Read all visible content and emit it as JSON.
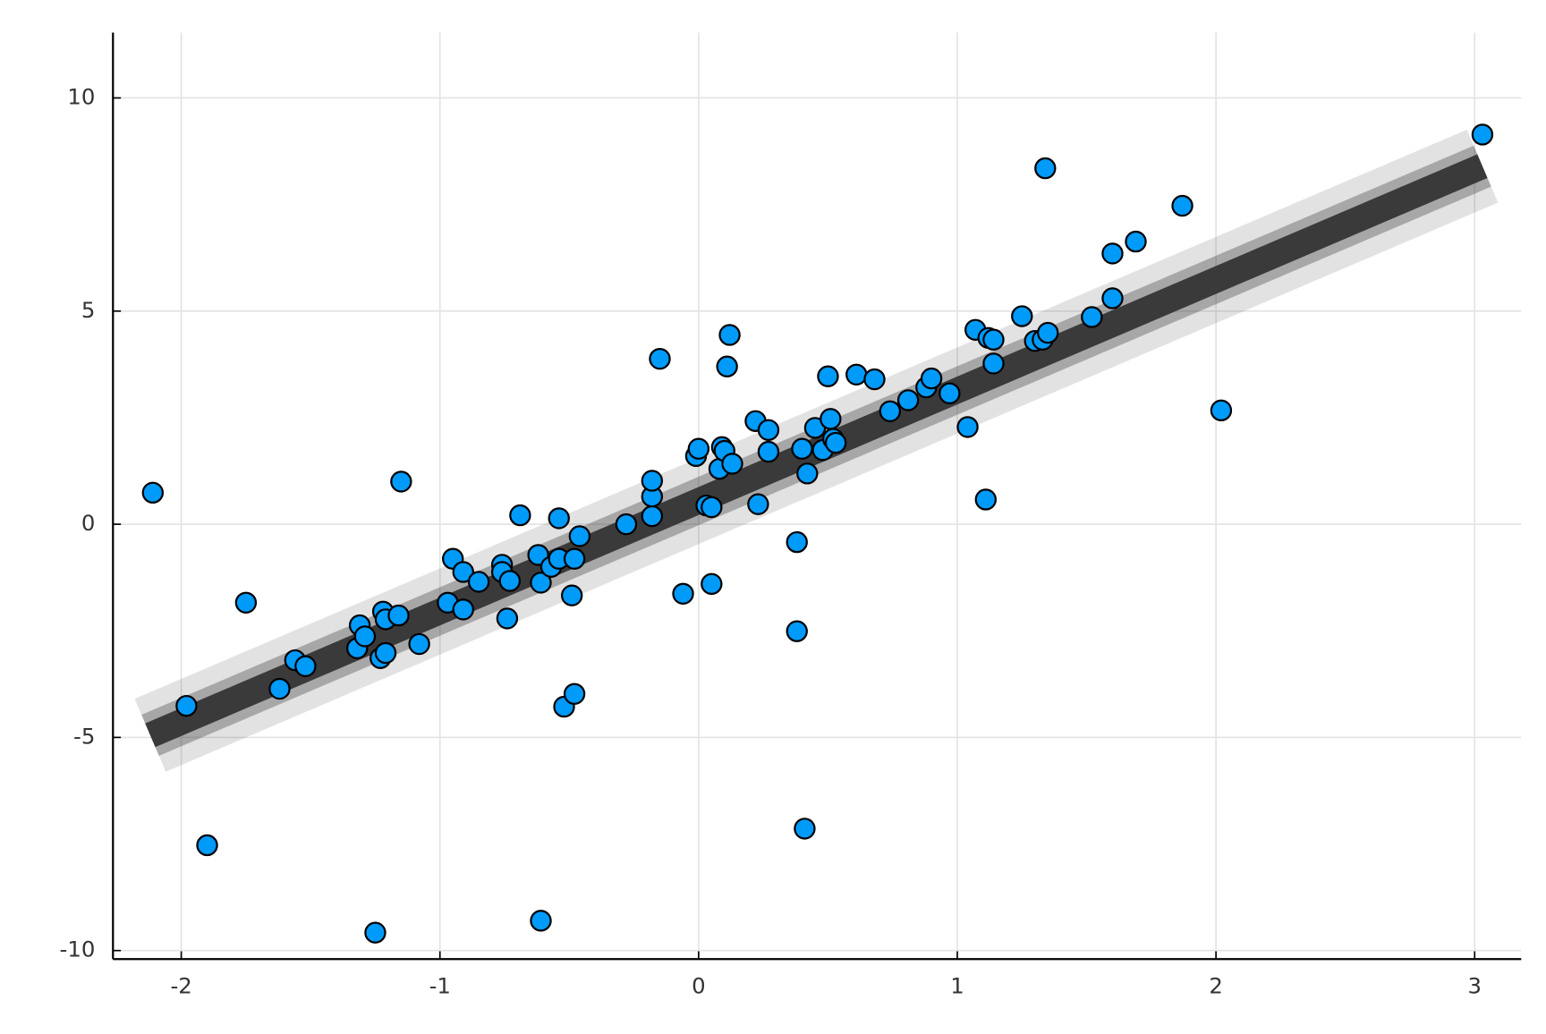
{
  "chart_data": {
    "type": "scatter",
    "x": [
      -2.11,
      -1.98,
      -1.9,
      -1.75,
      -1.62,
      -1.56,
      -1.52,
      -1.32,
      -1.31,
      -1.29,
      -1.25,
      -1.23,
      -1.22,
      -1.21,
      -1.21,
      -1.16,
      -1.15,
      -1.08,
      -0.97,
      -0.95,
      -0.91,
      -0.91,
      -0.85,
      -0.76,
      -0.76,
      -0.74,
      -0.73,
      -0.69,
      -0.62,
      -0.61,
      -0.61,
      -0.57,
      -0.54,
      -0.54,
      -0.52,
      -0.49,
      -0.48,
      -0.48,
      -0.46,
      -0.28,
      -0.18,
      -0.18,
      -0.18,
      -0.15,
      -0.06,
      -0.01,
      0.0,
      0.03,
      0.05,
      0.05,
      0.08,
      0.09,
      0.1,
      0.11,
      0.12,
      0.13,
      0.22,
      0.23,
      0.27,
      0.27,
      0.38,
      0.38,
      0.4,
      0.41,
      0.42,
      0.45,
      0.48,
      0.5,
      0.51,
      0.52,
      0.53,
      0.61,
      0.68,
      0.74,
      0.81,
      0.88,
      0.9,
      0.97,
      1.04,
      1.07,
      1.11,
      1.12,
      1.14,
      1.14,
      1.25,
      1.3,
      1.33,
      1.34,
      1.35,
      1.52,
      1.6,
      1.6,
      1.69,
      1.87,
      2.02,
      3.03
    ],
    "values": [
      0.74,
      -4.26,
      -7.53,
      -1.84,
      -3.86,
      -3.19,
      -3.33,
      -2.91,
      -2.37,
      -2.63,
      -9.58,
      -3.14,
      -2.05,
      -3.02,
      -2.23,
      -2.14,
      1.0,
      -2.81,
      -1.84,
      -0.81,
      -1.12,
      -2.0,
      -1.35,
      -0.95,
      -1.12,
      -2.21,
      -1.33,
      0.21,
      -0.72,
      -9.3,
      -1.37,
      -1.0,
      0.14,
      -0.81,
      -4.28,
      -1.67,
      -3.98,
      -0.81,
      -0.28,
      0.0,
      0.19,
      0.65,
      1.02,
      3.88,
      -1.63,
      1.6,
      1.77,
      0.44,
      -1.4,
      0.4,
      1.3,
      1.81,
      1.72,
      3.7,
      4.44,
      1.42,
      2.42,
      0.47,
      2.21,
      1.7,
      -0.42,
      -2.51,
      1.77,
      -7.14,
      1.19,
      2.26,
      1.74,
      3.47,
      2.47,
      2.0,
      1.91,
      3.51,
      3.4,
      2.65,
      2.91,
      3.21,
      3.42,
      3.07,
      2.28,
      4.56,
      0.58,
      4.37,
      4.33,
      3.77,
      4.88,
      4.3,
      4.33,
      8.35,
      4.49,
      4.86,
      6.35,
      5.3,
      6.63,
      7.47,
      2.67,
      9.14
    ],
    "color": "#009af9",
    "fit": {
      "x": [
        -2.12,
        3.03
      ],
      "values": [
        -4.95,
        8.4
      ],
      "color": "#3a3a3a"
    },
    "xlim": [
      -2.264,
      3.18
    ],
    "ylim": [
      -10.2,
      11.53
    ],
    "xticks": [
      -2,
      -1,
      0,
      1,
      2,
      3
    ],
    "yticks": [
      -10,
      -5,
      0,
      5,
      10
    ],
    "grid": true
  }
}
